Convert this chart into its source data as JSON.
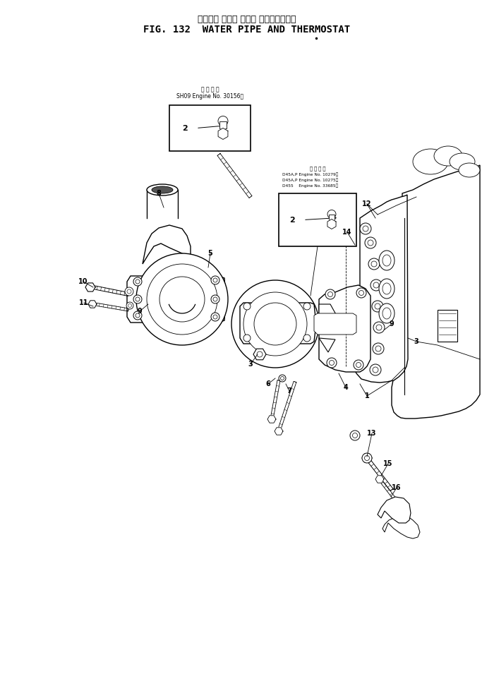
{
  "title_japanese": "ウォータ パイプ および サーモスタット",
  "title_english": "FIG. 132  WATER PIPE AND THERMOSTAT",
  "bg_color": "#ffffff",
  "fig_width": 7.0,
  "fig_height": 9.89,
  "dpi": 100,
  "box1_text_line1": "適 用 号 機",
  "box1_text_line2": "SH09 Engine No. 30156～",
  "box2_text_line1": "適 用 号 機",
  "box2_text_line2": "D45A,P Engine No. 10279～",
  "box2_text_line3": "D45A,P Engine No. 10275～",
  "box2_text_line4": "D455    Engine No. 33685～"
}
